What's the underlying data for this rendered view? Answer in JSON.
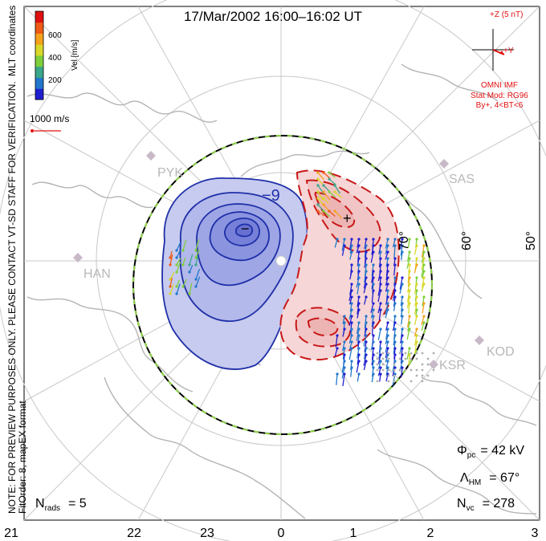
{
  "title": "17/Mar/2002 16:00–16:02 UT",
  "vertical_notes": {
    "line1": "MLT coordinates",
    "line2": "NOTE: FOR PREVIEW PURPOSES ONLY. PLEASE CONTACT VT-SD STAFF FOR VERIFICATION.",
    "line3": "FitOrder: 8, mapEX format"
  },
  "color_scale": {
    "label": "Vel [m/s]",
    "ticks": [
      "600",
      "400",
      "200"
    ],
    "colors": [
      "#1f1fd0",
      "#2277cc",
      "#3aa68a",
      "#7ecf3a",
      "#d8d82a",
      "#f4a21c",
      "#ef5a16",
      "#e01010"
    ]
  },
  "vector_scale": {
    "label": "1000 m/s"
  },
  "imf": {
    "z_label": "+Z (5 nT)",
    "y_label": "+Y",
    "source": "OMNI IMF",
    "model": "Stat Mod: RG96",
    "model_params": "By+, 4<BT<6",
    "vector_angle_deg": 18
  },
  "stations": [
    {
      "name": "PYK",
      "gray": true
    },
    {
      "name": "SAS",
      "gray": true
    },
    {
      "name": "HAN",
      "gray": true
    },
    {
      "name": "KSR",
      "gray": true
    },
    {
      "name": "KOD",
      "gray": true
    }
  ],
  "latitude_labels": [
    "70°",
    "60°",
    "50°"
  ],
  "mlt_labels": [
    "21",
    "22",
    "23",
    "0",
    "1",
    "2",
    "3"
  ],
  "contour_label": "−9",
  "stats": {
    "phi_pc_symbol": "Φ",
    "phi_pc_sub": "pc",
    "phi_pc_value": "= 42 kV",
    "lambda_hm_symbol": "Λ",
    "lambda_hm_sub": "HM",
    "lambda_hm_value": "= 67°",
    "n_vc_symbol": "N",
    "n_vc_sub": "vc",
    "n_vc_value": "= 278",
    "n_rads_symbol": "N",
    "n_rads_sub": "rads",
    "n_rads_value": "= 5"
  },
  "colors": {
    "grid": "#c8c8c8",
    "coast": "#b4b4b4",
    "negative_cell": "#1f2fa8",
    "negative_fill": "#aab0e8",
    "positive_cell": "#c81818",
    "positive_fill": "#f2c2c2",
    "imf": "#e01010"
  }
}
